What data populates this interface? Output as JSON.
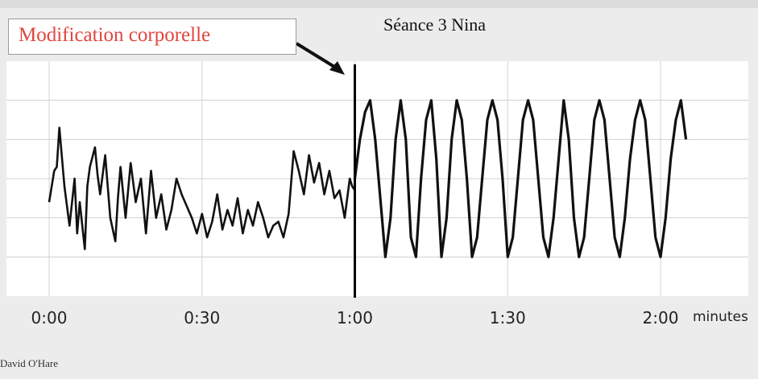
{
  "annotation": {
    "text": "Modification corporelle"
  },
  "chart_title": "Séance 3   Nina",
  "credit": "David O'Hare",
  "colors": {
    "annotation_text": "#e0453d",
    "trace": "#111111",
    "grid": "#d0d0d0"
  },
  "chart_data": {
    "type": "line",
    "title": "Séance 3   Nina",
    "xlabel": "minutes",
    "ylabel": "",
    "x_tick_labels": [
      "0:00",
      "0:30",
      "1:00",
      "1:30",
      "2:00"
    ],
    "x_tick_values": [
      0,
      30,
      60,
      90,
      120
    ],
    "xlim": [
      0,
      125
    ],
    "ylim": [
      0,
      6
    ],
    "grid": true,
    "annotation": {
      "text": "Modification corporelle",
      "x": 60
    },
    "series": [
      {
        "x": [
          0,
          1,
          1.5,
          2,
          3,
          4,
          5,
          5.5,
          6,
          7,
          7.5,
          8,
          9,
          9.5,
          10,
          11,
          12,
          13,
          13.5,
          14,
          15,
          16,
          17,
          18,
          19,
          20,
          21,
          22,
          23,
          24,
          25,
          26,
          27,
          28,
          29,
          30,
          31,
          32,
          33,
          34,
          35,
          36,
          37,
          38,
          39,
          40,
          41,
          42,
          43,
          44,
          45,
          46,
          47,
          48,
          49,
          50,
          51,
          52,
          53,
          54,
          55,
          56,
          57,
          58,
          59,
          59.5,
          60
        ],
        "y": [
          2.4,
          3.2,
          3.3,
          4.3,
          2.8,
          1.8,
          3.0,
          1.6,
          2.4,
          1.2,
          2.8,
          3.3,
          3.8,
          3.1,
          2.6,
          3.6,
          2.0,
          1.4,
          2.5,
          3.3,
          2.0,
          3.4,
          2.4,
          3.0,
          1.6,
          3.2,
          2.0,
          2.6,
          1.7,
          2.2,
          3.0,
          2.6,
          2.3,
          2.0,
          1.6,
          2.1,
          1.5,
          1.9,
          2.6,
          1.7,
          2.2,
          1.8,
          2.5,
          1.6,
          2.2,
          1.8,
          2.4,
          2.0,
          1.5,
          1.8,
          1.9,
          1.5,
          2.1,
          3.7,
          3.2,
          2.6,
          3.6,
          2.9,
          3.4,
          2.6,
          3.2,
          2.5,
          2.7,
          2.0,
          3.0,
          2.8,
          2.7
        ]
      },
      {
        "x": [
          60,
          61,
          62,
          63,
          64,
          65,
          66,
          67,
          68,
          69,
          70,
          71,
          72,
          73,
          74,
          75,
          76,
          77,
          78,
          79,
          80,
          81,
          82,
          83,
          84,
          85,
          86,
          87,
          88,
          89,
          90,
          91,
          92,
          93,
          94,
          95,
          96,
          97,
          98,
          99,
          100,
          101,
          102,
          103,
          104,
          105,
          106,
          107,
          108,
          109,
          110,
          111,
          112,
          113,
          114,
          115,
          116,
          117,
          118,
          119,
          120,
          121,
          122,
          123,
          124,
          125
        ],
        "y": [
          3.0,
          4.0,
          4.7,
          5.0,
          4.0,
          2.5,
          1.0,
          2.0,
          4.0,
          5.0,
          4.0,
          1.5,
          1.0,
          3.0,
          4.5,
          5.0,
          3.5,
          1.0,
          2.0,
          4.0,
          5.0,
          4.5,
          3.0,
          1.0,
          1.5,
          3.0,
          4.5,
          5.0,
          4.5,
          3.0,
          1.0,
          1.5,
          3.0,
          4.5,
          5.0,
          4.5,
          3.0,
          1.5,
          1.0,
          2.0,
          3.5,
          5.0,
          4.0,
          2.0,
          1.0,
          1.5,
          3.0,
          4.5,
          5.0,
          4.5,
          3.0,
          1.5,
          1.0,
          2.0,
          3.5,
          4.5,
          5.0,
          4.5,
          3.0,
          1.5,
          1.0,
          2.0,
          3.5,
          4.5,
          5.0,
          4.0
        ]
      }
    ]
  }
}
